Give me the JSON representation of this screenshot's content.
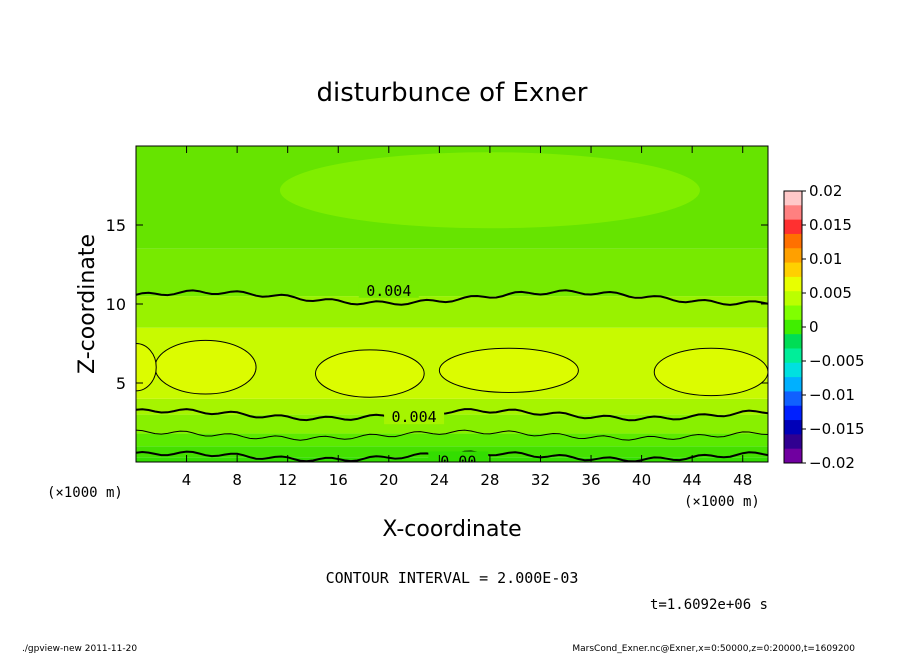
{
  "chart_data": {
    "type": "contour",
    "title": "disturbunce of Exner",
    "xlabel": "X-coordinate",
    "ylabel": "Z-coordinate",
    "x_unit": "(×1000 m)",
    "x_unit_right": "(×1000 m)",
    "xlim": [
      0,
      50
    ],
    "ylim": [
      0,
      20
    ],
    "x_ticks": [
      4,
      8,
      12,
      16,
      20,
      24,
      28,
      32,
      36,
      40,
      44,
      48
    ],
    "y_ticks": [
      5,
      10,
      15
    ],
    "contour_labels": [
      "0.004",
      "0.004",
      "0.00"
    ],
    "contour_interval": "CONTOUR INTERVAL = 2.000E-03",
    "time": "t=1.6092e+06 s",
    "colorbar": {
      "ticks": [
        "0.02",
        "0.015",
        "0.01",
        "0.005",
        "0",
        "−0.005",
        "−0.01",
        "−0.015",
        "−0.02"
      ],
      "range": [
        -0.02,
        0.02
      ],
      "colors": [
        "#ffc8c8",
        "#ff8080",
        "#ff3030",
        "#ff7000",
        "#ffa000",
        "#ffd000",
        "#e8ff00",
        "#bbff00",
        "#80ff00",
        "#40ee00",
        "#00dd55",
        "#00ee99",
        "#00e0e0",
        "#00b0ff",
        "#1060ff",
        "#0020ff",
        "#0000b8",
        "#300090",
        "#7000a0"
      ]
    },
    "bands": [
      {
        "z": [
          0,
          0.3
        ],
        "color": "#33dd00"
      },
      {
        "z": [
          0.3,
          1.0
        ],
        "color": "#44e000"
      },
      {
        "z": [
          1.0,
          1.8
        ],
        "color": "#5cea00"
      },
      {
        "z": [
          1.8,
          3.0
        ],
        "color": "#88f000"
      },
      {
        "z": [
          3.0,
          4.0
        ],
        "color": "#a6f400"
      },
      {
        "z": [
          4.0,
          8.5
        ],
        "color": "#c8fa00"
      },
      {
        "z": [
          8.5,
          10.5
        ],
        "color": "#99f200"
      },
      {
        "z": [
          10.5,
          13.5
        ],
        "color": "#77ea00"
      },
      {
        "z": [
          13.5,
          20
        ],
        "color": "#66e400"
      }
    ],
    "blobs": [
      {
        "cx": 5.5,
        "cz": 6.0,
        "rx": 4.0,
        "rz": 1.7
      },
      {
        "cx": 18.5,
        "cz": 5.6,
        "rx": 4.3,
        "rz": 1.5
      },
      {
        "cx": 29.5,
        "cz": 5.8,
        "rx": 5.5,
        "rz": 1.4
      },
      {
        "cx": 45.5,
        "cz": 5.7,
        "rx": 4.5,
        "rz": 1.5
      },
      {
        "cx": 0.0,
        "cz": 6.0,
        "rx": 1.6,
        "rz": 1.5
      }
    ]
  },
  "footer": {
    "left": "./gpview-new   2011-11-20",
    "right": "MarsCond_Exner.nc@Exner,x=0:50000,z=0:20000,t=1609200"
  }
}
